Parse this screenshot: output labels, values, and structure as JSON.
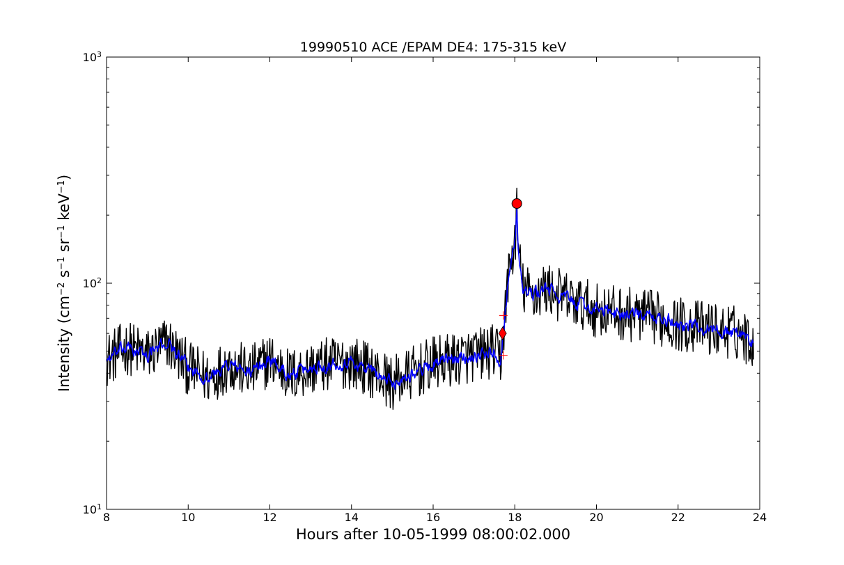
{
  "chart_data": {
    "type": "line",
    "title": "19990510 ACE /EPAM DE4: 175-315 keV",
    "xlabel": "Hours after 10-05-1999 08:00:02.000",
    "ylabel": {
      "prefix": "Intensity (cm",
      "sup1": "−2",
      "mid1": " s",
      "sup2": "−1",
      "mid2": " sr",
      "sup3": "−1",
      "mid3": " keV",
      "sup4": "−1",
      "suffix": ")"
    },
    "x_axis": {
      "min": 8,
      "max": 24,
      "ticks": [
        8,
        10,
        12,
        14,
        16,
        18,
        20,
        22,
        24
      ]
    },
    "y_axis": {
      "scale": "log",
      "min": 10,
      "max": 1000,
      "ticks": [
        {
          "value": 10,
          "base": "10",
          "exp": "1"
        },
        {
          "value": 100,
          "base": "10",
          "exp": "2"
        },
        {
          "value": 1000,
          "base": "10",
          "exp": "3"
        }
      ]
    },
    "grid": false,
    "series": [
      {
        "style": "raw",
        "color": "#000000",
        "x": [
          8.0,
          8.5,
          9.0,
          9.5,
          10.0,
          10.5,
          11.0,
          11.5,
          12.0,
          12.5,
          13.0,
          13.5,
          14.0,
          14.5,
          15.0,
          15.5,
          16.0,
          16.5,
          17.0,
          17.5,
          17.65,
          17.75,
          17.85,
          18.0,
          18.05,
          18.1,
          18.2,
          18.4,
          18.6,
          18.8,
          19.0,
          19.5,
          20.0,
          20.5,
          21.0,
          21.5,
          22.0,
          22.5,
          23.0,
          23.5,
          23.85
        ],
        "y": [
          46,
          52,
          48,
          55,
          42,
          38,
          44,
          40,
          46,
          39,
          42,
          44,
          45,
          41,
          36,
          40,
          44,
          46,
          48,
          50,
          45,
          70,
          110,
          150,
          205,
          130,
          95,
          88,
          92,
          95,
          90,
          82,
          76,
          74,
          72,
          70,
          66,
          64,
          62,
          60,
          55
        ],
        "noise_amplitude": 0.28
      },
      {
        "style": "smoothed",
        "color": "#0000ff",
        "x": [
          8.0,
          8.5,
          9.0,
          9.5,
          10.0,
          10.5,
          11.0,
          11.5,
          12.0,
          12.5,
          13.0,
          13.5,
          14.0,
          14.5,
          15.0,
          15.5,
          16.0,
          16.5,
          17.0,
          17.5,
          17.65,
          17.75,
          17.85,
          18.0,
          18.05,
          18.1,
          18.2,
          18.4,
          18.6,
          18.8,
          19.0,
          19.5,
          20.0,
          20.5,
          21.0,
          21.5,
          22.0,
          22.5,
          23.0,
          23.5,
          23.85
        ],
        "y": [
          46,
          52,
          48,
          55,
          42,
          38,
          44,
          40,
          46,
          39,
          42,
          44,
          45,
          41,
          36,
          40,
          44,
          46,
          48,
          50,
          45,
          70,
          110,
          150,
          205,
          130,
          95,
          88,
          92,
          95,
          90,
          82,
          76,
          74,
          72,
          70,
          66,
          64,
          62,
          60,
          55
        ],
        "noise_amplitude": 0.12
      }
    ],
    "markers": [
      {
        "shape": "circle",
        "x": 18.05,
        "y": 225,
        "color": "#ff0000"
      },
      {
        "shape": "diamond",
        "x": 17.7,
        "y": 60,
        "color": "#ff0000"
      },
      {
        "shape": "plus",
        "x": 17.72,
        "y": 72,
        "color": "#ff0000"
      },
      {
        "shape": "plus",
        "x": 17.72,
        "y": 48,
        "color": "#ff0000"
      }
    ]
  }
}
